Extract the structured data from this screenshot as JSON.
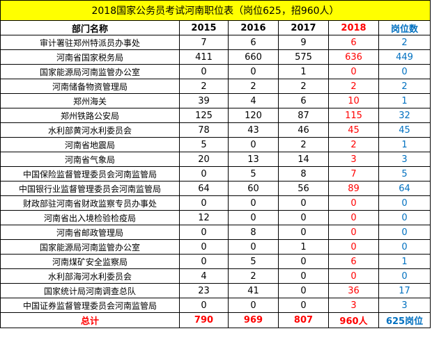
{
  "title": "2018国家公务员考试河南职位表（岗位625，招960人）",
  "headers": [
    "部门名称",
    "2015",
    "2016",
    "2017",
    "2018",
    "岗位数"
  ],
  "rows": [
    {
      "name": "审计署驻郑州特派员办事处",
      "y2015": "7",
      "y2016": "6",
      "y2017": "9",
      "y2018": "6",
      "posts": "2"
    },
    {
      "name": "河南省国家税务局",
      "y2015": "411",
      "y2016": "660",
      "y2017": "575",
      "y2018": "636",
      "posts": "449"
    },
    {
      "name": "国家能源局河南监管办公室",
      "y2015": "0",
      "y2016": "0",
      "y2017": "1",
      "y2018": "0",
      "posts": "0"
    },
    {
      "name": "河南储备物资管理局",
      "y2015": "2",
      "y2016": "2",
      "y2017": "2",
      "y2018": "2",
      "posts": "2"
    },
    {
      "name": "郑州海关",
      "y2015": "39",
      "y2016": "4",
      "y2017": "6",
      "y2018": "10",
      "posts": "1"
    },
    {
      "name": "郑州铁路公安局",
      "y2015": "125",
      "y2016": "120",
      "y2017": "87",
      "y2018": "115",
      "posts": "32"
    },
    {
      "name": "水利部黄河水利委员会",
      "y2015": "78",
      "y2016": "43",
      "y2017": "46",
      "y2018": "45",
      "posts": "45"
    },
    {
      "name": "河南省地震局",
      "y2015": "5",
      "y2016": "0",
      "y2017": "2",
      "y2018": "2",
      "posts": "1"
    },
    {
      "name": "河南省气象局",
      "y2015": "20",
      "y2016": "13",
      "y2017": "14",
      "y2018": "3",
      "posts": "3"
    },
    {
      "name": "中国保险监督管理委员会河南监管局",
      "y2015": "0",
      "y2016": "5",
      "y2017": "8",
      "y2018": "7",
      "posts": "5"
    },
    {
      "name": "中国银行业监督管理委员会河南监管局",
      "y2015": "64",
      "y2016": "60",
      "y2017": "56",
      "y2018": "89",
      "posts": "64"
    },
    {
      "name": "财政部驻河南省财政监察专员办事处",
      "y2015": "0",
      "y2016": "0",
      "y2017": "0",
      "y2018": "0",
      "posts": "0"
    },
    {
      "name": "河南省出入境检验检疫局",
      "y2015": "12",
      "y2016": "0",
      "y2017": "0",
      "y2018": "0",
      "posts": "0"
    },
    {
      "name": "河南省邮政管理局",
      "y2015": "0",
      "y2016": "8",
      "y2017": "0",
      "y2018": "0",
      "posts": "0"
    },
    {
      "name": "国家能源局河南监管办公室",
      "y2015": "0",
      "y2016": "0",
      "y2017": "1",
      "y2018": "0",
      "posts": "0"
    },
    {
      "name": "河南煤矿安全监察局",
      "y2015": "0",
      "y2016": "5",
      "y2017": "0",
      "y2018": "6",
      "posts": "1"
    },
    {
      "name": "水利部海河水利委员会",
      "y2015": "4",
      "y2016": "2",
      "y2017": "0",
      "y2018": "0",
      "posts": "0"
    },
    {
      "name": "国家统计局河南调查总队",
      "y2015": "23",
      "y2016": "41",
      "y2017": "0",
      "y2018": "36",
      "posts": "17"
    },
    {
      "name": "中国证券监督管理委员会河南监管局",
      "y2015": "0",
      "y2016": "0",
      "y2017": "0",
      "y2018": "3",
      "posts": "3"
    }
  ],
  "total": {
    "name": "总计",
    "y2015": "790",
    "y2016": "969",
    "y2017": "807",
    "y2018": "960人",
    "posts": "625岗位"
  },
  "colors": {
    "title_bg": "#ffff00",
    "highlight_2018": "#ff0000",
    "highlight_posts": "#0070c0"
  }
}
